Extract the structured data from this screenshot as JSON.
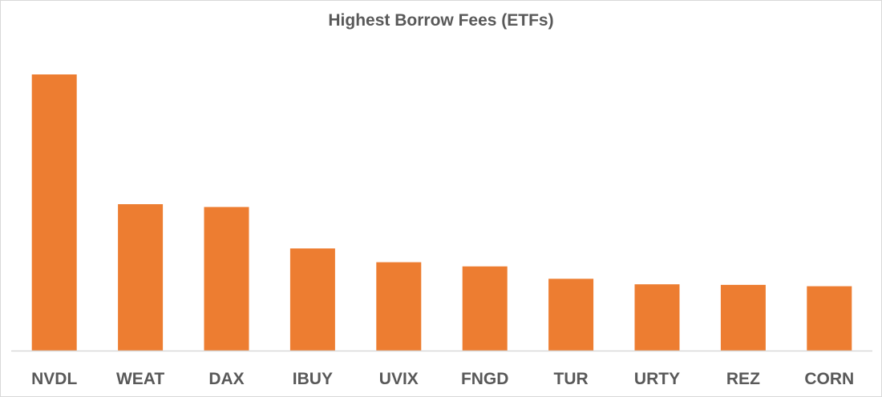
{
  "chart_data": {
    "type": "bar",
    "title": "Highest Borrow Fees (ETFs)",
    "xlabel": "",
    "ylabel": "",
    "categories": [
      "NVDL",
      "WEAT",
      "DAX",
      "IBUY",
      "UVIX",
      "FNGD",
      "TUR",
      "URTY",
      "REZ",
      "CORN"
    ],
    "values": [
      100,
      53,
      52,
      37,
      32,
      30.5,
      26,
      24,
      23.8,
      23.3
    ],
    "ylim": [
      0,
      100
    ],
    "grid": false,
    "legend": "none",
    "bar_color": "#ed7d31",
    "axis_color": "#d9d9d9"
  }
}
